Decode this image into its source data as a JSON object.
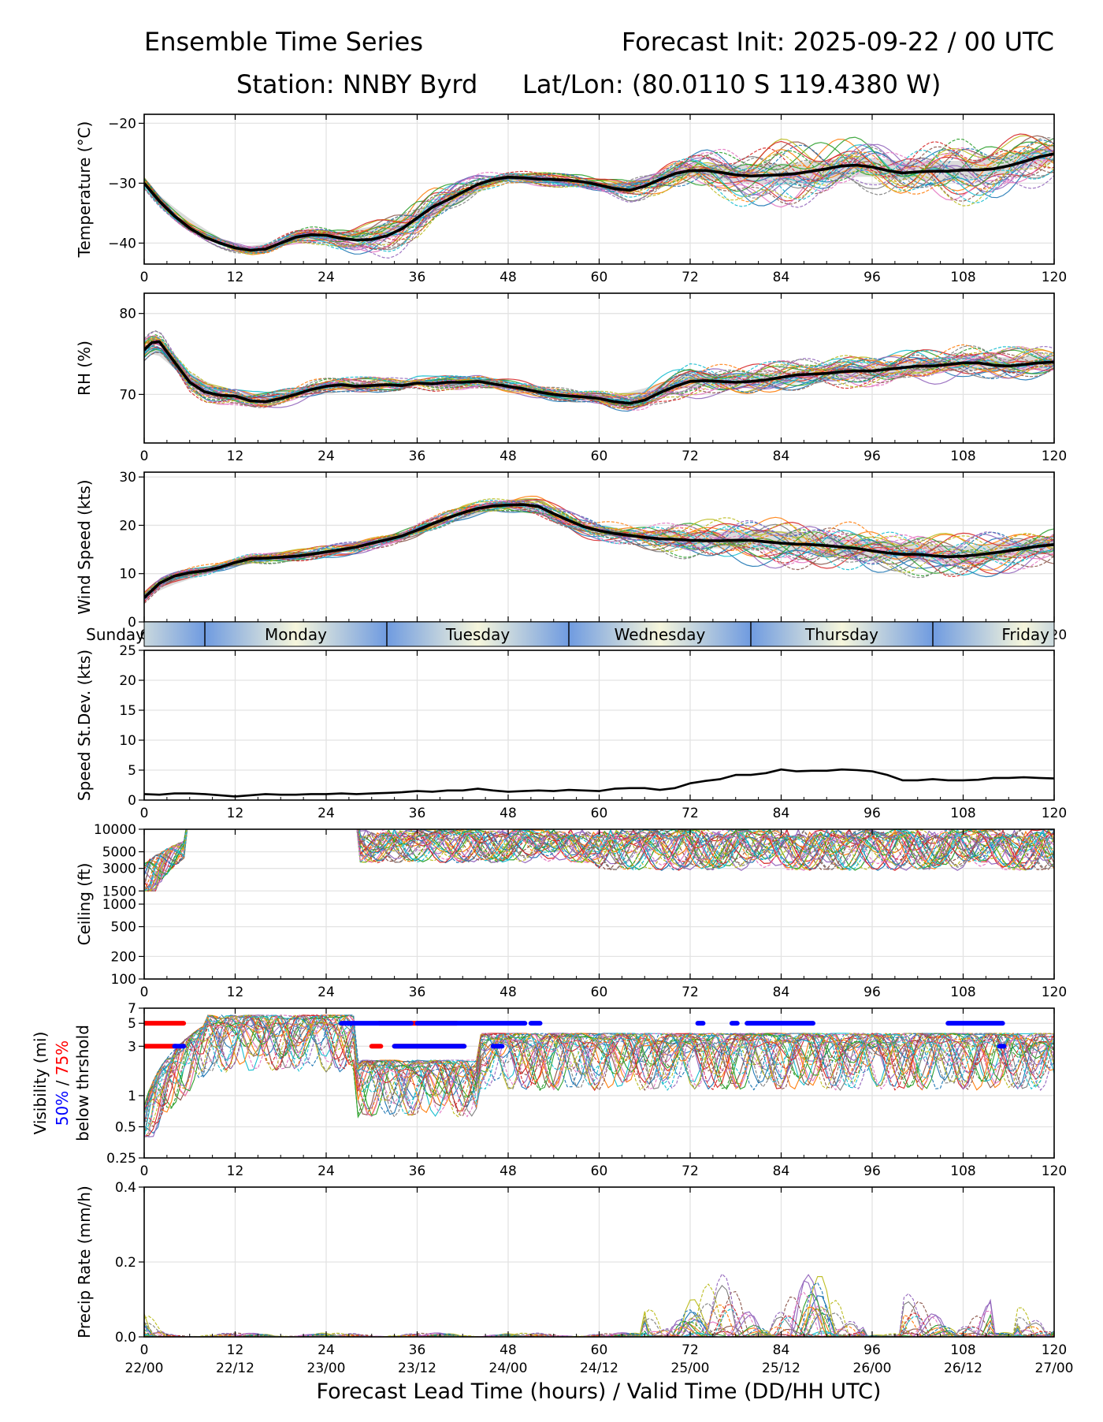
{
  "header": {
    "title_left": "Ensemble Time Series",
    "title_right": "Forecast Init: 2025-09-22 / 00 UTC",
    "station": "Station: NNBY Byrd",
    "latlon": "Lat/Lon: (80.0110 S 119.4380 W)"
  },
  "colors": {
    "members": [
      "#1f77b4",
      "#ff7f0e",
      "#2ca02c",
      "#d62728",
      "#9467bd",
      "#8c564b",
      "#e377c2",
      "#7f7f7f",
      "#bcbd22",
      "#17becf"
    ],
    "mean": "#000000",
    "spread": "#d9d9d9",
    "vis50": "#0000ff",
    "vis75": "#ff0000",
    "day_light": "#f6f6dc",
    "day_dark": "#6f9be0"
  },
  "axes": {
    "x_ticks": [
      0,
      12,
      24,
      36,
      48,
      60,
      72,
      84,
      96,
      108,
      120
    ],
    "x_tick_labels": [
      "0",
      "12",
      "24",
      "36",
      "48",
      "60",
      "72",
      "84",
      "96",
      "108",
      "120"
    ],
    "valid_time_labels": [
      "22/00",
      "22/12",
      "23/00",
      "23/12",
      "24/00",
      "24/12",
      "25/00",
      "25/12",
      "26/00",
      "26/12",
      "27/00"
    ],
    "x_label": "Forecast Lead Time (hours) / Valid Time (DD/HH UTC)"
  },
  "day_band": {
    "labels": [
      "Sunday",
      "Monday",
      "Tuesday",
      "Wednesday",
      "Thursday",
      "Friday"
    ],
    "boundaries_hours": [
      8,
      32,
      56,
      80,
      104
    ]
  },
  "chart_data": [
    {
      "id": "temperature",
      "type": "line",
      "ylabel": "Temperature (°C)",
      "ylim": [
        -43.5,
        -18.5
      ],
      "yticks": [
        -40,
        -30,
        -20
      ],
      "ytick_labels": [
        "−40",
        "−30",
        "−20"
      ],
      "series": [
        {
          "name": "ensemble mean",
          "x": [
            0,
            2,
            4,
            6,
            8,
            10,
            12,
            14,
            16,
            18,
            20,
            22,
            24,
            26,
            28,
            30,
            32,
            34,
            36,
            38,
            40,
            42,
            44,
            46,
            48,
            50,
            52,
            54,
            56,
            58,
            60,
            62,
            64,
            66,
            68,
            70,
            72,
            74,
            76,
            78,
            80,
            82,
            84,
            86,
            88,
            90,
            92,
            94,
            96,
            98,
            100,
            102,
            104,
            106,
            108,
            110,
            112,
            114,
            116,
            118,
            120
          ],
          "values": [
            -30,
            -33,
            -35.5,
            -37.5,
            -39,
            -40,
            -40.8,
            -41.2,
            -41,
            -40,
            -39,
            -38.6,
            -38.7,
            -39.2,
            -39.5,
            -39.4,
            -38.8,
            -37.6,
            -35.8,
            -34,
            -32.8,
            -31.5,
            -30.2,
            -29.4,
            -29,
            -29.1,
            -29.3,
            -29.4,
            -29.5,
            -29.8,
            -30.3,
            -30.9,
            -31.2,
            -30.5,
            -29.4,
            -28.4,
            -27.9,
            -27.9,
            -28.2,
            -28.6,
            -28.8,
            -28.7,
            -28.6,
            -28.4,
            -28,
            -27.6,
            -27.1,
            -27,
            -27.3,
            -27.9,
            -28.3,
            -28.1,
            -28,
            -28,
            -27.8,
            -27.8,
            -27.6,
            -27.1,
            -26.4,
            -25.6,
            -25.1
          ]
        },
        {
          "name": "spread upper",
          "x": [
            0,
            12,
            24,
            36,
            48,
            60,
            72,
            84,
            96,
            108,
            120
          ],
          "values": [
            -29.5,
            -40.3,
            -38,
            -33.5,
            -28.5,
            -29.8,
            -26,
            -25.5,
            -24.8,
            -25.2,
            -22.8
          ]
        },
        {
          "name": "spread lower",
          "x": [
            0,
            12,
            24,
            36,
            48,
            60,
            72,
            84,
            96,
            108,
            120
          ],
          "values": [
            -30.5,
            -41.3,
            -39.6,
            -38.2,
            -29.6,
            -31.2,
            -30,
            -31.5,
            -30,
            -31,
            -27.5
          ]
        }
      ]
    },
    {
      "id": "rh",
      "type": "line",
      "ylabel": "RH (%)",
      "ylim": [
        64,
        82.5
      ],
      "yticks": [
        70,
        80
      ],
      "ytick_labels": [
        "70",
        "80"
      ],
      "series": [
        {
          "name": "ensemble mean",
          "x": [
            0,
            1,
            2,
            4,
            6,
            8,
            10,
            12,
            14,
            16,
            18,
            20,
            22,
            24,
            26,
            28,
            30,
            32,
            34,
            36,
            38,
            40,
            42,
            44,
            46,
            48,
            50,
            52,
            54,
            56,
            58,
            60,
            62,
            64,
            66,
            68,
            70,
            72,
            74,
            76,
            78,
            80,
            82,
            84,
            86,
            88,
            90,
            92,
            94,
            96,
            98,
            100,
            102,
            104,
            106,
            108,
            110,
            112,
            114,
            116,
            118,
            120
          ],
          "values": [
            75.5,
            76.4,
            76.5,
            74,
            71.5,
            70.3,
            69.9,
            69.8,
            69.2,
            69.1,
            69.5,
            70,
            70.6,
            71,
            71.2,
            71,
            71.1,
            71.2,
            71.1,
            71.4,
            71.3,
            71.5,
            71.5,
            71.6,
            71.3,
            71,
            70.7,
            70.3,
            70,
            69.8,
            69.7,
            69.5,
            69.1,
            68.9,
            69.3,
            70.2,
            71,
            71.6,
            71.7,
            71.6,
            71.5,
            71.6,
            71.8,
            72.1,
            72.4,
            72.5,
            72.6,
            72.8,
            72.9,
            72.9,
            73.1,
            73.3,
            73.5,
            73.5,
            73.7,
            73.9,
            73.9,
            73.6,
            73.5,
            73.7,
            73.9,
            74
          ]
        },
        {
          "name": "spread upper",
          "x": [
            0,
            12,
            24,
            36,
            48,
            60,
            72,
            84,
            96,
            108,
            120
          ],
          "values": [
            76.5,
            70.6,
            71.6,
            72,
            71.8,
            70.3,
            73.2,
            73.2,
            74.2,
            75.2,
            75.4
          ]
        },
        {
          "name": "spread lower",
          "x": [
            0,
            12,
            24,
            36,
            48,
            60,
            72,
            84,
            96,
            108,
            120
          ],
          "values": [
            74.5,
            69,
            70.2,
            70.8,
            70.6,
            69.2,
            70.4,
            70.5,
            71.4,
            72.4,
            72.6
          ]
        }
      ]
    },
    {
      "id": "wind",
      "type": "line",
      "ylabel": "Wind Speed (kts)",
      "ylim": [
        0,
        31
      ],
      "yticks": [
        0,
        10,
        20,
        30
      ],
      "ytick_labels": [
        "0",
        "10",
        "20",
        "30"
      ],
      "series": [
        {
          "name": "ensemble mean",
          "x": [
            0,
            2,
            4,
            6,
            8,
            10,
            12,
            14,
            16,
            18,
            20,
            22,
            24,
            26,
            28,
            30,
            32,
            34,
            36,
            38,
            40,
            42,
            44,
            46,
            48,
            50,
            52,
            54,
            56,
            58,
            60,
            62,
            64,
            66,
            68,
            70,
            72,
            74,
            76,
            78,
            80,
            82,
            84,
            86,
            88,
            90,
            92,
            94,
            96,
            98,
            100,
            102,
            104,
            106,
            108,
            110,
            112,
            114,
            116,
            118,
            120
          ],
          "values": [
            5,
            8,
            9.5,
            10.2,
            10.6,
            11.3,
            12.3,
            13.1,
            13.2,
            13.4,
            13.6,
            14,
            14.5,
            15,
            15.5,
            16.3,
            17,
            17.8,
            19,
            20.3,
            21.5,
            22.6,
            23.5,
            24,
            24.2,
            24.3,
            23.9,
            22.4,
            21,
            19.7,
            18.9,
            18.3,
            17.9,
            17.5,
            17.2,
            17.1,
            16.9,
            16.8,
            16.8,
            16.9,
            16.9,
            16.6,
            16.3,
            16.1,
            16,
            15.8,
            15.5,
            15.2,
            14.7,
            14.3,
            14,
            14,
            13.7,
            13.5,
            13.6,
            13.9,
            14.3,
            14.7,
            15.2,
            15.7,
            16
          ]
        },
        {
          "name": "spread upper",
          "x": [
            0,
            12,
            24,
            36,
            48,
            60,
            72,
            84,
            96,
            108,
            120
          ],
          "values": [
            5.8,
            13,
            15.5,
            20,
            25.2,
            20.5,
            19.5,
            20.5,
            18.5,
            17,
            19
          ]
        },
        {
          "name": "spread lower",
          "x": [
            0,
            12,
            24,
            36,
            48,
            60,
            72,
            84,
            96,
            108,
            120
          ],
          "values": [
            4.2,
            11.6,
            13.7,
            18,
            23,
            17.5,
            14.5,
            13.5,
            12,
            11,
            13
          ]
        }
      ]
    },
    {
      "id": "speed_stdev",
      "type": "line",
      "ylabel": "Speed St.Dev. (kts)",
      "ylim": [
        0,
        25
      ],
      "yticks": [
        0,
        5,
        10,
        15,
        20,
        25
      ],
      "ytick_labels": [
        "0",
        "5",
        "10",
        "15",
        "20",
        "25"
      ],
      "series": [
        {
          "name": "std dev",
          "x": [
            0,
            2,
            4,
            6,
            8,
            10,
            12,
            14,
            16,
            18,
            20,
            22,
            24,
            26,
            28,
            30,
            32,
            34,
            36,
            38,
            40,
            42,
            44,
            46,
            48,
            50,
            52,
            54,
            56,
            58,
            60,
            62,
            64,
            66,
            68,
            70,
            72,
            74,
            76,
            78,
            80,
            82,
            84,
            86,
            88,
            90,
            92,
            94,
            96,
            98,
            100,
            102,
            104,
            106,
            108,
            110,
            112,
            114,
            116,
            118,
            120
          ],
          "values": [
            1,
            0.9,
            1.1,
            1.1,
            1,
            0.8,
            0.6,
            0.8,
            1,
            0.9,
            0.9,
            1,
            1,
            1.1,
            1,
            1.1,
            1.2,
            1.3,
            1.5,
            1.4,
            1.6,
            1.6,
            1.9,
            1.6,
            1.4,
            1.5,
            1.6,
            1.5,
            1.7,
            1.6,
            1.5,
            1.9,
            2,
            2,
            1.7,
            2,
            2.8,
            3.2,
            3.5,
            4.2,
            4.2,
            4.5,
            5.1,
            4.8,
            4.9,
            4.9,
            5.1,
            5,
            4.8,
            4.2,
            3.3,
            3.3,
            3.5,
            3.3,
            3.3,
            3.4,
            3.7,
            3.7,
            3.8,
            3.7,
            3.6
          ]
        }
      ]
    },
    {
      "id": "ceiling",
      "type": "line",
      "ylabel": "Ceiling (ft)",
      "yscale": "log",
      "ylim": [
        100,
        10000
      ],
      "yticks": [
        100,
        200,
        500,
        1000,
        1500,
        3000,
        5000,
        10000
      ],
      "ytick_labels": [
        "100",
        "200",
        "500",
        "1000",
        "1500",
        "3000",
        "5000",
        "10000"
      ],
      "series": []
    },
    {
      "id": "visibility",
      "type": "line",
      "ylabel": "Visibility (mi)",
      "ylabel_50": "50%",
      "ylabel_sep": " / ",
      "ylabel_75": "75%",
      "ylabel_sub": "below thrshold",
      "yscale": "log",
      "ylim": [
        0.25,
        7
      ],
      "yticks": [
        0.25,
        0.5,
        1,
        3,
        5,
        7
      ],
      "ytick_labels": [
        "0.25",
        "0.5",
        "1",
        "3",
        "5",
        "7"
      ],
      "threshold_markers": {
        "blue_5mi": [
          [
            26,
            35
          ],
          [
            36,
            50
          ],
          [
            51,
            52
          ],
          [
            73,
            73.5
          ],
          [
            77.5,
            78
          ],
          [
            79.5,
            88
          ],
          [
            106,
            113
          ]
        ],
        "red_5mi": [
          [
            0,
            5
          ],
          [
            31,
            41
          ]
        ],
        "blue_3mi": [
          [
            4,
            5
          ],
          [
            33,
            42
          ],
          [
            46,
            47
          ],
          [
            112.8,
            113.2
          ]
        ],
        "red_3mi": [
          [
            0,
            4
          ],
          [
            30,
            31
          ],
          [
            33,
            42
          ]
        ]
      },
      "series": []
    },
    {
      "id": "precip",
      "type": "line",
      "ylabel": "Precip Rate (mm/h)",
      "ylim": [
        0,
        0.4
      ],
      "yticks": [
        0,
        0.2,
        0.4
      ],
      "ytick_labels": [
        "0.0",
        "0.2",
        "0.4"
      ],
      "series": []
    }
  ]
}
